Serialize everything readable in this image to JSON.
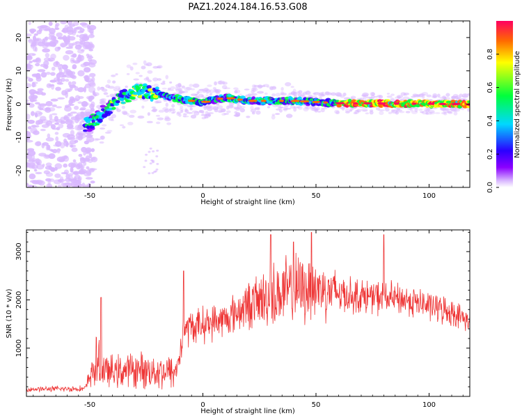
{
  "title": "PAZ1.2024.184.16.53.G08",
  "chart_data": [
    {
      "type": "heatmap",
      "xlabel": "Height of straight line (km)",
      "ylabel": "Frequency (Hz)",
      "xlim": [
        -78,
        118
      ],
      "ylim": [
        -25,
        25
      ],
      "xticks": [
        -50,
        0,
        50,
        100
      ],
      "yticks": [
        -20,
        -10,
        0,
        10,
        20
      ],
      "colorbar": {
        "label": "Normalized spectral amplitude",
        "range": [
          0,
          1
        ],
        "ticks": [
          0.0,
          0.2,
          0.4,
          0.6,
          0.8
        ],
        "colors": [
          "#ffffff",
          "#d9b8ff",
          "#8b00ff",
          "#2b00ff",
          "#00d8ff",
          "#00ff3c",
          "#ffff00",
          "#ff6a00",
          "#ff0060"
        ]
      },
      "ridge": [
        {
          "x": -50,
          "freq": -6
        },
        {
          "x": -45,
          "freq": -3
        },
        {
          "x": -38,
          "freq": 1
        },
        {
          "x": -32,
          "freq": 3
        },
        {
          "x": -27,
          "freq": 4
        },
        {
          "x": -20,
          "freq": 3
        },
        {
          "x": -10,
          "freq": 1.5
        },
        {
          "x": 0,
          "freq": 0.5
        },
        {
          "x": 10,
          "freq": 2
        },
        {
          "x": 20,
          "freq": 1
        },
        {
          "x": 40,
          "freq": 1
        },
        {
          "x": 60,
          "freq": 0.3
        },
        {
          "x": 118,
          "freq": 0
        }
      ]
    },
    {
      "type": "line",
      "xlabel": "Height of straight line (km)",
      "ylabel": "SNR (10 * v/v)",
      "xlim": [
        -78,
        118
      ],
      "ylim": [
        0,
        3450
      ],
      "xticks": [
        -50,
        0,
        50,
        100
      ],
      "yticks": [
        1000,
        2000,
        3000
      ],
      "color": "#ee3333",
      "envelope": [
        {
          "x": -78,
          "mean": 150,
          "amp": 60
        },
        {
          "x": -52,
          "mean": 160,
          "amp": 80
        },
        {
          "x": -50,
          "mean": 400,
          "amp": 300
        },
        {
          "x": -47,
          "mean": 700,
          "amp": 650
        },
        {
          "x": -42,
          "mean": 500,
          "amp": 400
        },
        {
          "x": -30,
          "mean": 550,
          "amp": 450
        },
        {
          "x": -12,
          "mean": 500,
          "amp": 450
        },
        {
          "x": -8,
          "mean": 1400,
          "amp": 450
        },
        {
          "x": 10,
          "mean": 1600,
          "amp": 450
        },
        {
          "x": 20,
          "mean": 1900,
          "amp": 600
        },
        {
          "x": 35,
          "mean": 2150,
          "amp": 900
        },
        {
          "x": 50,
          "mean": 2250,
          "amp": 850
        },
        {
          "x": 65,
          "mean": 2100,
          "amp": 450
        },
        {
          "x": 90,
          "mean": 2000,
          "amp": 400
        },
        {
          "x": 110,
          "mean": 1750,
          "amp": 350
        },
        {
          "x": 118,
          "mean": 1550,
          "amp": 250
        }
      ],
      "spikes": [
        {
          "x": -45,
          "y": 2050
        },
        {
          "x": -8.5,
          "y": 2600
        },
        {
          "x": 30,
          "y": 3350
        },
        {
          "x": 40,
          "y": 3200
        },
        {
          "x": 48,
          "y": 3400
        },
        {
          "x": 80,
          "y": 3350
        }
      ]
    }
  ]
}
